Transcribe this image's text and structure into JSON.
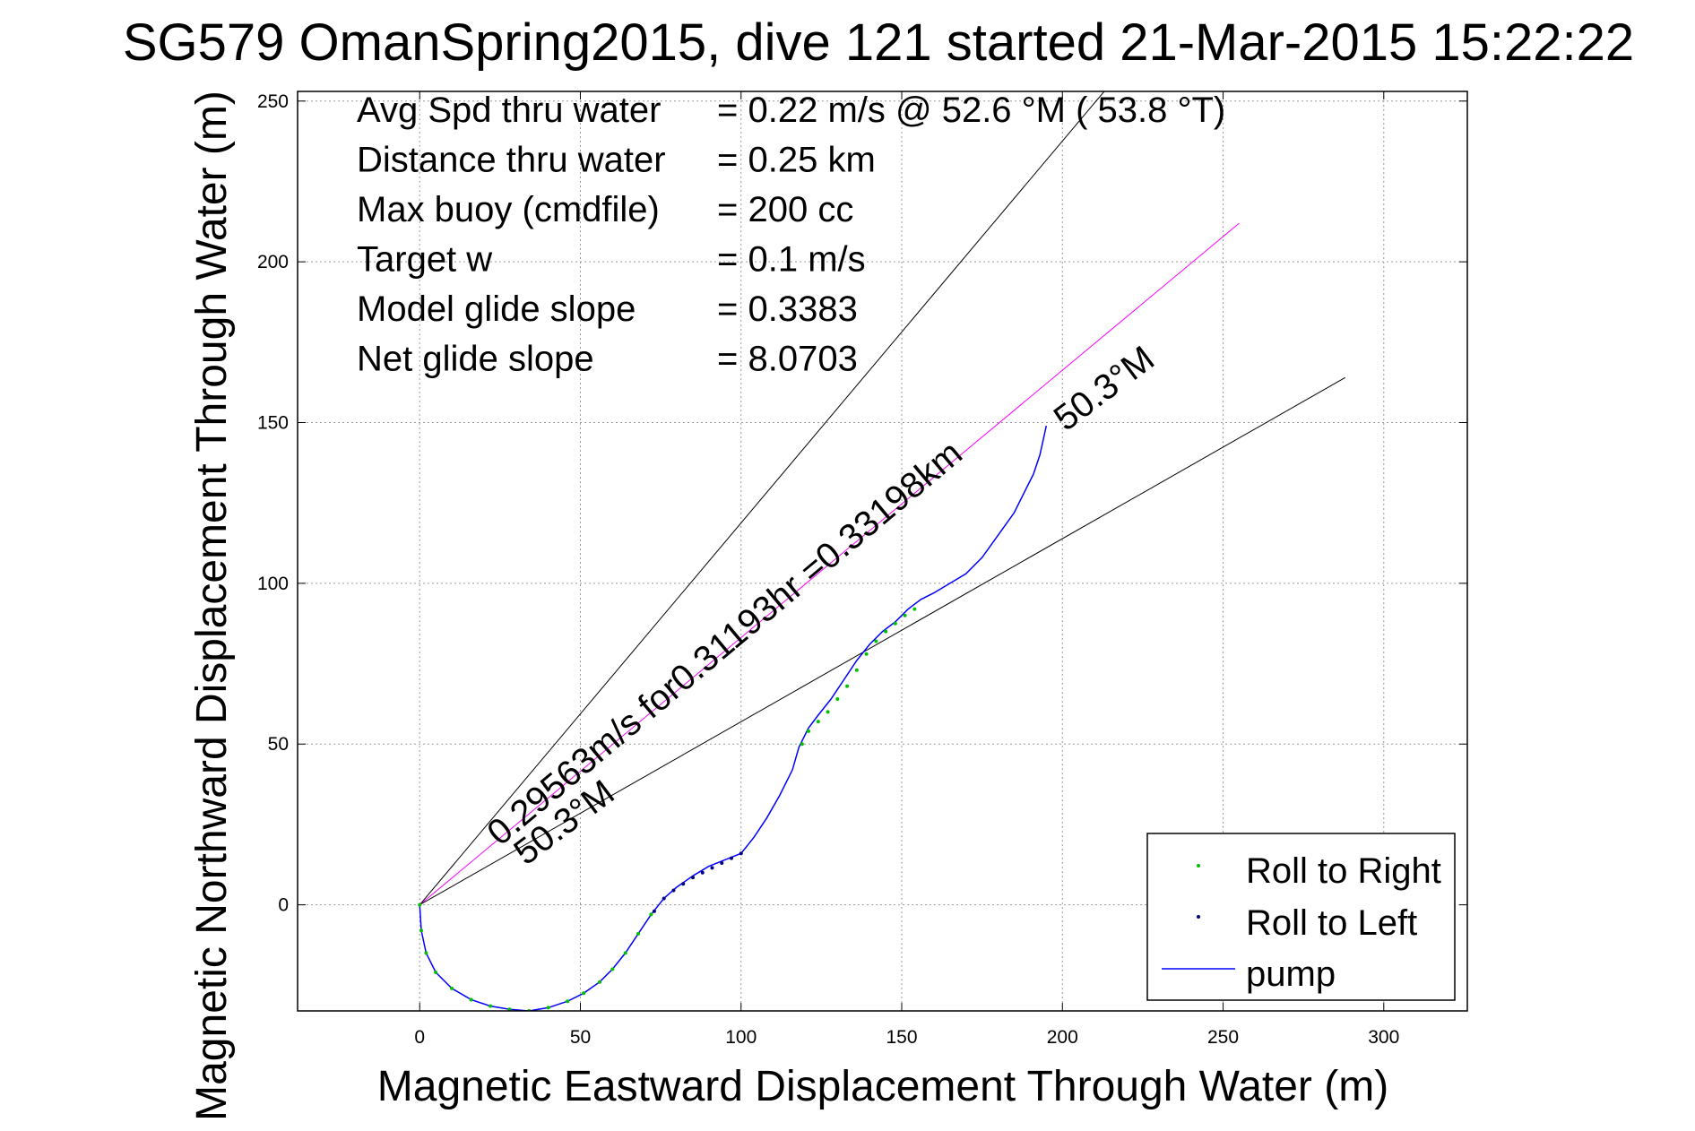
{
  "chart_data": {
    "type": "line",
    "title": "SG579 OmanSpring2015, dive 121 started 21-Mar-2015 15:22:22",
    "xlabel": "Magnetic Eastward Displacement Through Water (m)",
    "ylabel": "Magnetic Northward Displacement Through Water (m)",
    "xlim": [
      -38,
      326
    ],
    "ylim": [
      -33,
      253
    ],
    "xticks": [
      0,
      50,
      100,
      150,
      200,
      250,
      300
    ],
    "yticks": [
      0,
      50,
      100,
      150,
      200,
      250
    ],
    "grid": true,
    "legend_position": "bottom-right",
    "info_lines": [
      {
        "label": "Avg Spd thru water",
        "value": "=  0.22 m/s @  52.6 °M ( 53.8 °T)"
      },
      {
        "label": "Distance thru water",
        "value": "=  0.25 km"
      },
      {
        "label": "Max buoy (cmdfile)",
        "value": "= 200 cc"
      },
      {
        "label": "Target w",
        "value": "= 0.1 m/s"
      },
      {
        "label": "Model glide slope",
        "value": "= 0.3383"
      },
      {
        "label": "Net glide slope",
        "value": "= 8.0703"
      }
    ],
    "annotations": [
      {
        "text": "0.29563m/s for0.31193hr =0.33198km",
        "x": 25,
        "y": 18,
        "angle": 40
      },
      {
        "text": "50.3°M",
        "x": 33,
        "y": 12,
        "angle": 37
      },
      {
        "text": "50.3°M",
        "x": 201,
        "y": 147,
        "angle": 37
      }
    ],
    "reference_lines": [
      {
        "name": "bound-left",
        "color": "#000000",
        "from": [
          0,
          0
        ],
        "to": [
          213,
          253
        ]
      },
      {
        "name": "heading",
        "color": "#ff00ff",
        "from": [
          0,
          0
        ],
        "to": [
          255,
          212
        ]
      },
      {
        "name": "bound-right",
        "color": "#000000",
        "from": [
          0,
          0
        ],
        "to": [
          288,
          164
        ]
      }
    ],
    "series": [
      {
        "name": "pump",
        "style": "line",
        "color": "#0000ff",
        "x": [
          0,
          0.5,
          2,
          5,
          10,
          16,
          22,
          28,
          34,
          40,
          46,
          51,
          56,
          60,
          64,
          68,
          72,
          76,
          80,
          85,
          90,
          95,
          100,
          104,
          108,
          112,
          116,
          118,
          121,
          124,
          128,
          132,
          136,
          140,
          144,
          148,
          152,
          156,
          160,
          165,
          170,
          175,
          180,
          185,
          188,
          191,
          193,
          195
        ],
        "y": [
          0,
          -8,
          -15,
          -21,
          -26,
          -29.5,
          -31.5,
          -32.5,
          -33,
          -32,
          -30,
          -27.5,
          -24,
          -20,
          -15,
          -9,
          -3,
          2,
          5.5,
          9,
          12,
          14,
          16,
          21,
          27,
          34,
          42,
          49,
          55,
          59,
          64,
          70,
          76,
          81,
          85,
          88,
          92,
          95,
          97,
          100,
          103,
          108,
          115,
          122,
          128,
          134,
          140,
          149
        ]
      },
      {
        "name": "Roll to Right",
        "style": "dots",
        "color": "#00c000",
        "x": [
          0,
          0.5,
          2,
          5,
          10,
          16,
          22,
          28,
          34,
          40,
          46,
          51,
          56,
          60,
          64,
          68,
          72,
          119,
          121,
          124,
          127,
          130,
          133,
          136,
          139,
          142,
          145,
          148,
          151,
          154
        ],
        "y": [
          0,
          -8,
          -15,
          -21,
          -26,
          -29.5,
          -31.5,
          -32.5,
          -33,
          -32,
          -30,
          -27.5,
          -24,
          -20,
          -15,
          -9,
          -3,
          50,
          54,
          57,
          60,
          64,
          68,
          73,
          78,
          82,
          85,
          87.5,
          90,
          92
        ]
      },
      {
        "name": "Roll to Left",
        "style": "dots",
        "color": "#000080",
        "x": [
          73,
          76,
          79,
          82,
          85,
          88,
          91,
          94,
          97,
          100
        ],
        "y": [
          -2,
          2,
          4.5,
          6.5,
          8.5,
          10,
          11.5,
          13,
          14.5,
          16
        ]
      }
    ]
  }
}
